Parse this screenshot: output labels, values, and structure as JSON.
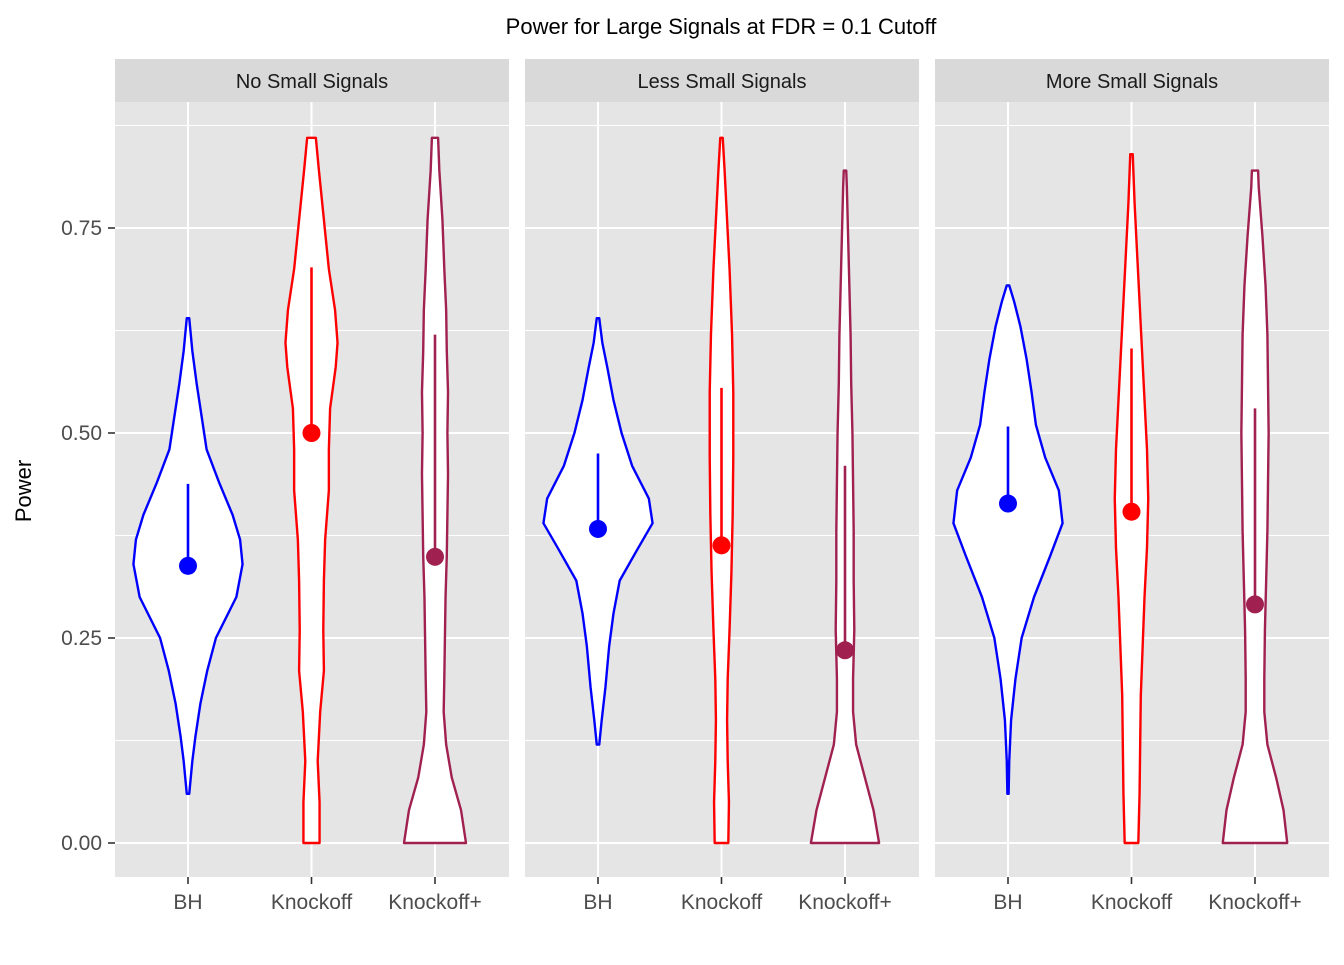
{
  "chart_data": {
    "type": "violin",
    "title": "Power for Large Signals at FDR = 0.1 Cutoff",
    "xlabel": "",
    "ylabel": "Power",
    "ylim": [
      -0.04,
      0.89
    ],
    "yticks": [
      0.0,
      0.25,
      0.5,
      0.75
    ],
    "ytick_labels": [
      "0.00",
      "0.25",
      "0.50",
      "0.75"
    ],
    "grid": true,
    "categories": [
      "BH",
      "Knockoff",
      "Knockoff+"
    ],
    "colors": {
      "BH": "#0000ff",
      "Knockoff": "#ff0000",
      "Knockoff+": "#a0204f",
      "panel_bg": "#e5e5e5",
      "strip_bg": "#d9d9d9",
      "grid": "#ffffff"
    },
    "panels": [
      {
        "label": "No Small Signals",
        "series": [
          {
            "name": "BH",
            "range": [
              0.06,
              0.64
            ],
            "point": 0.338,
            "line": [
              0.338,
              0.438
            ],
            "density": [
              [
                0.06,
                0.02
              ],
              [
                0.1,
                0.07
              ],
              [
                0.13,
                0.12
              ],
              [
                0.17,
                0.2
              ],
              [
                0.21,
                0.31
              ],
              [
                0.25,
                0.45
              ],
              [
                0.3,
                0.78
              ],
              [
                0.34,
                0.88
              ],
              [
                0.37,
                0.84
              ],
              [
                0.4,
                0.72
              ],
              [
                0.44,
                0.5
              ],
              [
                0.48,
                0.3
              ],
              [
                0.52,
                0.22
              ],
              [
                0.56,
                0.14
              ],
              [
                0.6,
                0.07
              ],
              [
                0.64,
                0.02
              ]
            ]
          },
          {
            "name": "Knockoff",
            "range": [
              0.0,
              0.86
            ],
            "point": 0.5,
            "line": [
              0.5,
              0.702
            ],
            "density": [
              [
                0.0,
                0.13
              ],
              [
                0.05,
                0.13
              ],
              [
                0.1,
                0.1
              ],
              [
                0.16,
                0.14
              ],
              [
                0.21,
                0.2
              ],
              [
                0.26,
                0.19
              ],
              [
                0.32,
                0.2
              ],
              [
                0.37,
                0.22
              ],
              [
                0.43,
                0.28
              ],
              [
                0.48,
                0.28
              ],
              [
                0.53,
                0.3
              ],
              [
                0.58,
                0.39
              ],
              [
                0.61,
                0.42
              ],
              [
                0.65,
                0.38
              ],
              [
                0.7,
                0.28
              ],
              [
                0.76,
                0.2
              ],
              [
                0.82,
                0.12
              ],
              [
                0.86,
                0.07
              ]
            ]
          },
          {
            "name": "Knockoff+",
            "range": [
              0.0,
              0.86
            ],
            "point": 0.349,
            "line": [
              0.349,
              0.62
            ],
            "density": [
              [
                0.0,
                0.5
              ],
              [
                0.04,
                0.42
              ],
              [
                0.08,
                0.27
              ],
              [
                0.12,
                0.18
              ],
              [
                0.16,
                0.14
              ],
              [
                0.2,
                0.15
              ],
              [
                0.25,
                0.16
              ],
              [
                0.3,
                0.17
              ],
              [
                0.35,
                0.19
              ],
              [
                0.4,
                0.2
              ],
              [
                0.45,
                0.21
              ],
              [
                0.5,
                0.2
              ],
              [
                0.55,
                0.21
              ],
              [
                0.6,
                0.19
              ],
              [
                0.65,
                0.18
              ],
              [
                0.7,
                0.15
              ],
              [
                0.76,
                0.12
              ],
              [
                0.82,
                0.07
              ],
              [
                0.86,
                0.05
              ]
            ]
          }
        ]
      },
      {
        "label": "Less Small Signals",
        "series": [
          {
            "name": "BH",
            "range": [
              0.12,
              0.64
            ],
            "point": 0.383,
            "line": [
              0.383,
              0.475
            ],
            "density": [
              [
                0.12,
                0.02
              ],
              [
                0.15,
                0.06
              ],
              [
                0.19,
                0.12
              ],
              [
                0.24,
                0.18
              ],
              [
                0.28,
                0.25
              ],
              [
                0.32,
                0.35
              ],
              [
                0.36,
                0.65
              ],
              [
                0.39,
                0.88
              ],
              [
                0.42,
                0.82
              ],
              [
                0.46,
                0.55
              ],
              [
                0.5,
                0.38
              ],
              [
                0.54,
                0.25
              ],
              [
                0.58,
                0.15
              ],
              [
                0.61,
                0.07
              ],
              [
                0.64,
                0.02
              ]
            ]
          },
          {
            "name": "Knockoff",
            "range": [
              0.0,
              0.86
            ],
            "point": 0.363,
            "line": [
              0.363,
              0.555
            ],
            "density": [
              [
                0.0,
                0.11
              ],
              [
                0.05,
                0.12
              ],
              [
                0.1,
                0.1
              ],
              [
                0.15,
                0.09
              ],
              [
                0.2,
                0.1
              ],
              [
                0.26,
                0.13
              ],
              [
                0.33,
                0.16
              ],
              [
                0.4,
                0.18
              ],
              [
                0.47,
                0.19
              ],
              [
                0.55,
                0.19
              ],
              [
                0.62,
                0.17
              ],
              [
                0.7,
                0.13
              ],
              [
                0.76,
                0.09
              ],
              [
                0.82,
                0.05
              ],
              [
                0.86,
                0.02
              ]
            ]
          },
          {
            "name": "Knockoff+",
            "range": [
              0.0,
              0.82
            ],
            "point": 0.235,
            "line": [
              0.235,
              0.46
            ],
            "density": [
              [
                0.0,
                0.55
              ],
              [
                0.04,
                0.46
              ],
              [
                0.08,
                0.32
              ],
              [
                0.12,
                0.18
              ],
              [
                0.16,
                0.13
              ],
              [
                0.2,
                0.13
              ],
              [
                0.26,
                0.15
              ],
              [
                0.32,
                0.14
              ],
              [
                0.38,
                0.14
              ],
              [
                0.44,
                0.13
              ],
              [
                0.5,
                0.12
              ],
              [
                0.56,
                0.1
              ],
              [
                0.62,
                0.09
              ],
              [
                0.68,
                0.07
              ],
              [
                0.74,
                0.05
              ],
              [
                0.8,
                0.03
              ],
              [
                0.82,
                0.02
              ]
            ]
          }
        ]
      },
      {
        "label": "More Small Signals",
        "series": [
          {
            "name": "BH",
            "range": [
              0.06,
              0.68
            ],
            "point": 0.414,
            "line": [
              0.414,
              0.508
            ],
            "density": [
              [
                0.06,
                0.01
              ],
              [
                0.1,
                0.02
              ],
              [
                0.15,
                0.05
              ],
              [
                0.2,
                0.12
              ],
              [
                0.25,
                0.22
              ],
              [
                0.3,
                0.42
              ],
              [
                0.35,
                0.68
              ],
              [
                0.39,
                0.88
              ],
              [
                0.43,
                0.82
              ],
              [
                0.47,
                0.6
              ],
              [
                0.51,
                0.45
              ],
              [
                0.55,
                0.38
              ],
              [
                0.59,
                0.3
              ],
              [
                0.63,
                0.2
              ],
              [
                0.66,
                0.1
              ],
              [
                0.68,
                0.02
              ]
            ]
          },
          {
            "name": "Knockoff",
            "range": [
              0.0,
              0.84
            ],
            "point": 0.404,
            "line": [
              0.404,
              0.603
            ],
            "density": [
              [
                0.0,
                0.11
              ],
              [
                0.06,
                0.13
              ],
              [
                0.12,
                0.14
              ],
              [
                0.18,
                0.15
              ],
              [
                0.24,
                0.18
              ],
              [
                0.3,
                0.21
              ],
              [
                0.36,
                0.25
              ],
              [
                0.42,
                0.27
              ],
              [
                0.48,
                0.25
              ],
              [
                0.54,
                0.21
              ],
              [
                0.6,
                0.17
              ],
              [
                0.66,
                0.13
              ],
              [
                0.72,
                0.09
              ],
              [
                0.78,
                0.05
              ],
              [
                0.84,
                0.02
              ]
            ]
          },
          {
            "name": "Knockoff+",
            "range": [
              0.0,
              0.82
            ],
            "point": 0.291,
            "line": [
              0.291,
              0.53
            ],
            "density": [
              [
                0.0,
                0.52
              ],
              [
                0.04,
                0.46
              ],
              [
                0.08,
                0.34
              ],
              [
                0.12,
                0.2
              ],
              [
                0.16,
                0.15
              ],
              [
                0.2,
                0.15
              ],
              [
                0.26,
                0.16
              ],
              [
                0.32,
                0.18
              ],
              [
                0.38,
                0.2
              ],
              [
                0.44,
                0.21
              ],
              [
                0.5,
                0.22
              ],
              [
                0.56,
                0.21
              ],
              [
                0.62,
                0.2
              ],
              [
                0.68,
                0.17
              ],
              [
                0.74,
                0.12
              ],
              [
                0.8,
                0.06
              ],
              [
                0.82,
                0.05
              ]
            ]
          }
        ]
      }
    ]
  }
}
